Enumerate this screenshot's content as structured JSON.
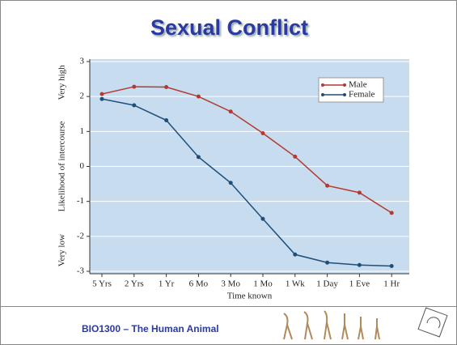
{
  "chart_data": {
    "type": "line",
    "title": "Sexual Conflict",
    "x_label": "Time known",
    "y_label": "Likelihood of intercourse",
    "annotations": [
      "Very high",
      "Very low"
    ],
    "categories": [
      "5 Yrs",
      "2 Yrs",
      "1 Yr",
      "6 Mo",
      "3 Mo",
      "1 Mo",
      "1 Wk",
      "1 Day",
      "1 Eve",
      "1 Hr"
    ],
    "series": [
      {
        "name": "Male",
        "color": "#b23a2e",
        "values": [
          2.07,
          2.28,
          2.27,
          2.0,
          1.57,
          0.95,
          0.28,
          -0.55,
          -0.75,
          -1.33
        ]
      },
      {
        "name": "Female",
        "color": "#1f4e79",
        "values": [
          1.93,
          1.75,
          1.32,
          0.27,
          -0.47,
          -1.5,
          -2.52,
          -2.75,
          -2.82,
          -2.85
        ]
      }
    ],
    "ylim": [
      -3,
      3
    ],
    "yticks": [
      -3,
      -2,
      -1,
      0,
      1,
      2,
      3
    ],
    "grid": true,
    "legend": "upper right"
  },
  "footer": {
    "text": "BIO1300 – The Human Animal"
  }
}
